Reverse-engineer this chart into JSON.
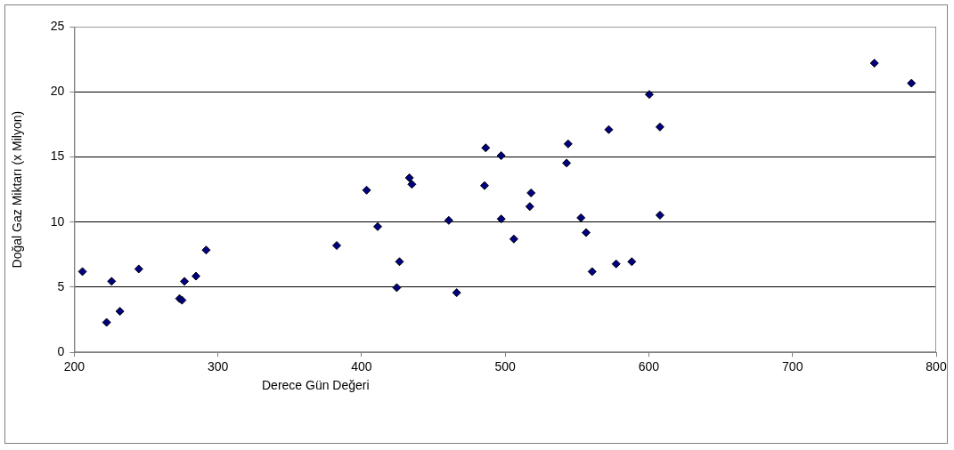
{
  "chart_data": {
    "type": "scatter",
    "xlabel": "Derece Gün Değeri",
    "ylabel": "Doğal Gaz Miktarı (x Milyon)",
    "xlim": [
      200,
      800
    ],
    "xticks": [
      200,
      300,
      400,
      500,
      600,
      700,
      800
    ],
    "ylim": [
      0,
      25
    ],
    "yticks": [
      0,
      5,
      10,
      15,
      20,
      25
    ],
    "grid": "y",
    "marker": "diamond",
    "legend": false,
    "series": [
      {
        "color": "#000080",
        "x": [
          205.7,
          222.5,
          226,
          231.8,
          244.9,
          273.3,
          275,
          276.7,
          284.7,
          291.8,
          382.7,
          403.5,
          411.2,
          426.4,
          424.5,
          433.3,
          435,
          460.7,
          466.2,
          486.4,
          485.6,
          497.2,
          497.2,
          506,
          518,
          517.1,
          543.8,
          542.7,
          552.7,
          556.3,
          560.5,
          572.1,
          577.2,
          588.1,
          600.3,
          607.7,
          607.7,
          757,
          782.8
        ],
        "values": [
          6.2,
          2.3,
          5.45,
          3.15,
          6.4,
          4.13,
          4.0,
          5.45,
          5.85,
          7.85,
          8.2,
          12.45,
          9.65,
          6.96,
          4.97,
          13.4,
          12.9,
          10.13,
          4.58,
          15.7,
          12.8,
          15.1,
          10.24,
          8.7,
          12.24,
          11.19,
          16.0,
          14.53,
          10.33,
          9.19,
          6.2,
          17.1,
          6.79,
          6.96,
          19.8,
          17.3,
          10.53,
          22.2,
          20.66
        ]
      }
    ]
  }
}
